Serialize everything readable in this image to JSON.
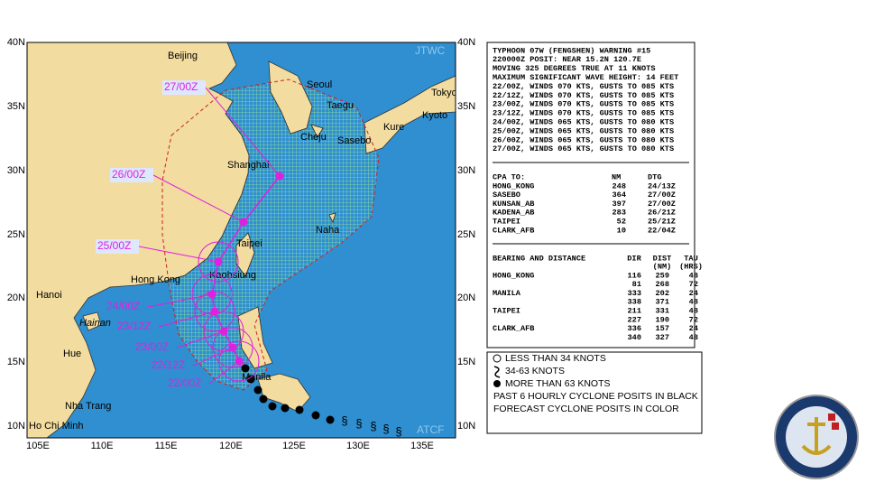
{
  "map": {
    "lat_labels": [
      "40N",
      "35N",
      "30N",
      "25N",
      "20N",
      "15N",
      "10N"
    ],
    "lon_labels": [
      "105E",
      "110E",
      "115E",
      "120E",
      "125E",
      "130E",
      "135E"
    ],
    "agency": "JTWC",
    "system": "ATCF",
    "places": [
      "Beijing",
      "Seoul",
      "Tokyo",
      "Taegu",
      "Kyoto",
      "Kure",
      "Cheju",
      "Sasebo",
      "Shanghai",
      "Naha",
      "Taipei",
      "Kaohsiung",
      "Hong Kong",
      "Hanoi",
      "Hainan",
      "Hue",
      "Manila",
      "Nha Trang",
      "Ho Chi Minh"
    ],
    "forecast_labels": [
      "22/00Z",
      "22/12Z",
      "23/00Z",
      "23/12Z",
      "24/00Z",
      "25/00Z",
      "26/00Z",
      "27/00Z"
    ]
  },
  "warning": {
    "lines": [
      "TYPHOON 07W (FENGSHEN) WARNING #15",
      "220000Z POSIT: NEAR 15.2N 120.7E",
      "MOVING 325 DEGREES TRUE AT 11 KNOTS",
      "MAXIMUM SIGNIFICANT WAVE HEIGHT: 14 FEET",
      "22/00Z, WINDS 070 KTS, GUSTS TO 085 KTS",
      "22/12Z, WINDS 070 KTS, GUSTS TO 085 KTS",
      "23/00Z, WINDS 070 KTS, GUSTS TO 085 KTS",
      "23/12Z, WINDS 070 KTS, GUSTS TO 085 KTS",
      "24/00Z, WINDS 065 KTS, GUSTS TO 080 KTS",
      "25/00Z, WINDS 065 KTS, GUSTS TO 080 KTS",
      "26/00Z, WINDS 065 KTS, GUSTS TO 080 KTS",
      "27/00Z, WINDS 065 KTS, GUSTS TO 080 KTS"
    ]
  },
  "cpa": {
    "header": [
      "CPA TO:",
      "NM",
      "DTG"
    ],
    "rows": [
      [
        "HONG_KONG",
        "248",
        "24/13Z"
      ],
      [
        "SASEBO",
        "364",
        "27/00Z"
      ],
      [
        "KUNSAN_AB",
        "397",
        "27/00Z"
      ],
      [
        "KADENA_AB",
        "283",
        "26/21Z"
      ],
      [
        "TAIPEI",
        "52",
        "25/21Z"
      ],
      [
        "CLARK_AFB",
        "10",
        "22/04Z"
      ]
    ]
  },
  "bearing": {
    "header": [
      "BEARING AND DISTANCE",
      "DIR",
      "DIST",
      "TAU"
    ],
    "subheader": [
      "(NM)",
      "(HRS)"
    ],
    "rows": [
      [
        "HONG_KONG",
        "116",
        "259",
        "48"
      ],
      [
        null,
        "81",
        "268",
        "72"
      ],
      [
        "MANILA",
        "333",
        "202",
        "24"
      ],
      [
        null,
        "338",
        "371",
        "48"
      ],
      [
        "TAIPEI",
        "211",
        "331",
        "48"
      ],
      [
        null,
        "227",
        "190",
        "72"
      ],
      [
        "CLARK_AFB",
        "336",
        "157",
        "24"
      ],
      [
        null,
        "340",
        "327",
        "48"
      ]
    ]
  },
  "legend": {
    "items": [
      "LESS THAN 34 KNOTS",
      "34-63 KNOTS",
      "MORE THAN 63 KNOTS",
      "PAST 6 HOURLY CYCLONE POSITS IN BLACK",
      "FORECAST CYCLONE POSITS IN COLOR"
    ]
  }
}
